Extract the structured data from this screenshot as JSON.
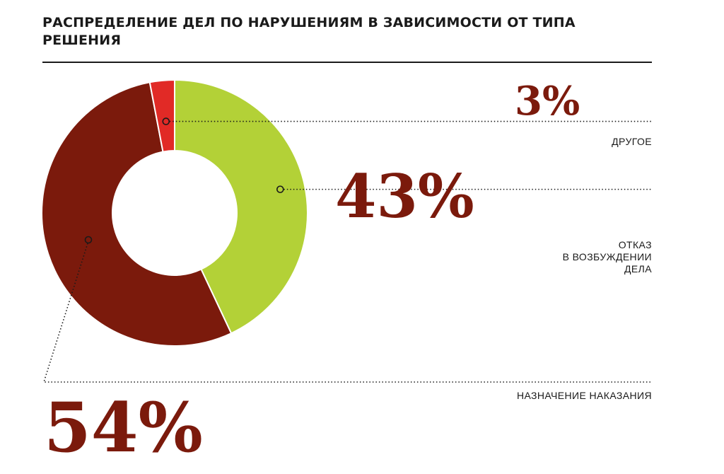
{
  "title": "РАСПРЕДЕЛЕНИЕ ДЕЛ ПО НАРУШЕНИЯМ В ЗАВИСИМОСТИ ОТ ТИПА РЕШЕНИЯ",
  "chart_data": {
    "type": "pie",
    "style": "donut",
    "title": "РАСПРЕДЕЛЕНИЕ ДЕЛ ПО НАРУШЕНИЯМ В ЗАВИСИМОСТИ ОТ ТИПА РЕШЕНИЯ",
    "unit": "%",
    "slices": [
      {
        "label": "ОТКАЗ\nВ ВОЗБУЖДЕНИИ\nДЕЛА",
        "value": 43,
        "display": "43%",
        "color": "#b3d137"
      },
      {
        "label": "НАЗНАЧЕНИЕ НАКАЗАНИЯ",
        "value": 54,
        "display": "54%",
        "color": "#7b1a0c"
      },
      {
        "label": "ДРУГОЕ",
        "value": 3,
        "display": "3%",
        "color": "#e12a26"
      }
    ],
    "start": "12 o'clock, clockwise",
    "percent_color": "#7b1a0c",
    "legend": "none (leader-line labels at right and bottom)"
  }
}
